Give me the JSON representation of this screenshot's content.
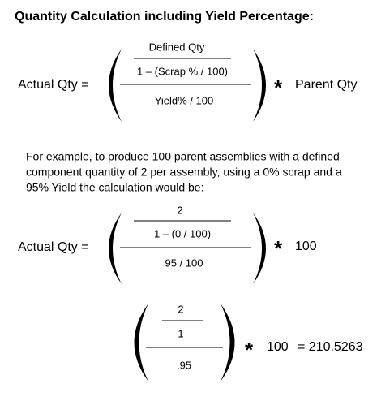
{
  "title": "Quantity Calculation including Yield Percentage:",
  "formula": {
    "lhs": "Actual Qty =",
    "numerator_top": "Defined Qty",
    "numerator_bottom": "1 – (Scrap % / 100)",
    "denominator": "Yield% / 100",
    "operator": "*",
    "rhs": "Parent Qty"
  },
  "example": {
    "lines": [
      "For example, to produce 100 parent assemblies with a defined",
      "component quantity of 2 per assembly, using a 0% scrap and a",
      "95% Yield the calculation would be:"
    ]
  },
  "example_formula": {
    "lhs": "Actual Qty =",
    "numerator_top": "2",
    "numerator_bottom": "1 – (0 / 100)",
    "denominator": "95 / 100",
    "operator": "*",
    "rhs": "100"
  },
  "simplified_formula": {
    "numerator_top": "2",
    "numerator_bottom": "1",
    "denominator": ".95",
    "operator": "*",
    "rhs": "100",
    "result": "= 210.5263"
  }
}
